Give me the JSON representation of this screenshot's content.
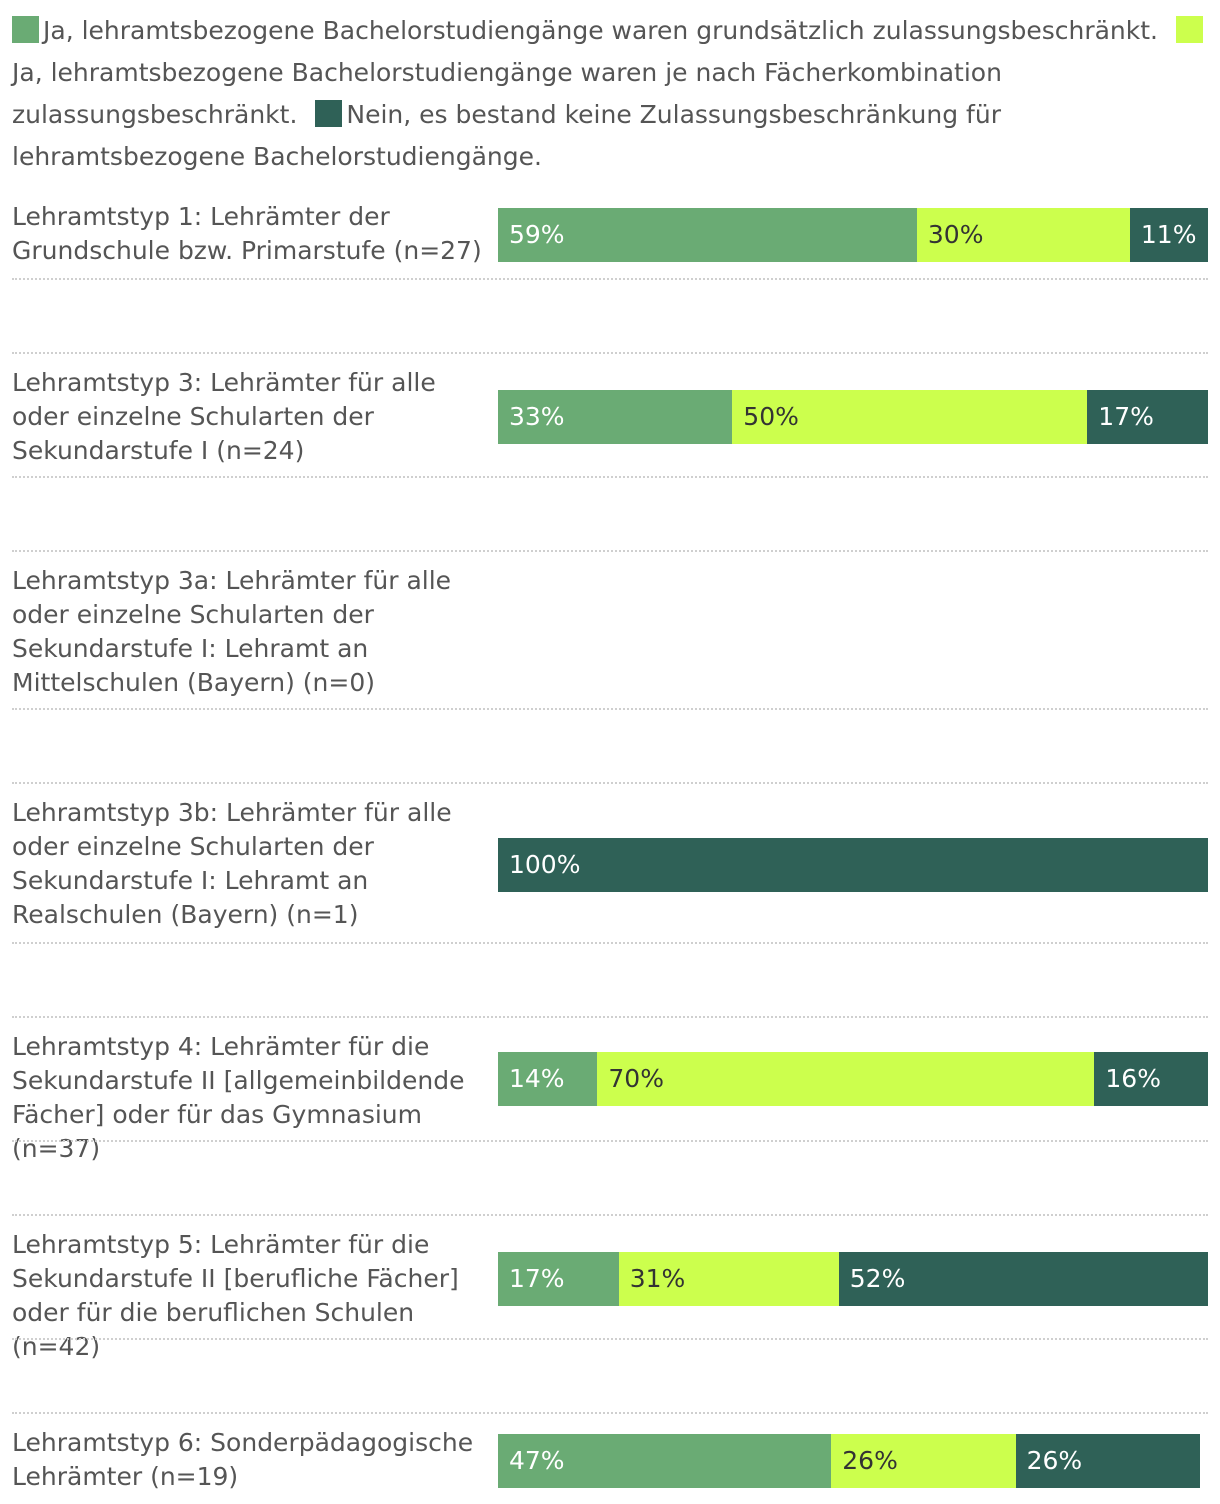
{
  "chart_data": {
    "type": "bar",
    "orientation": "horizontal",
    "stacked": true,
    "value_unit": "%",
    "xlim": [
      0,
      100
    ],
    "legend_position": "top",
    "series": [
      {
        "name": "Ja, lehramtsbezogene Bachelorstudiengänge waren grundsätzlich zulassungsbeschränkt.",
        "color": "#6aab74",
        "text_color": "#ffffff",
        "values": [
          59,
          33,
          0,
          0,
          14,
          17,
          47
        ]
      },
      {
        "name": "Ja, lehramtsbezogene Bachelorstudiengänge waren je nach Fächerkombination zulassungsbeschränkt.",
        "color": "#ccff4d",
        "text_color": "#333333",
        "values": [
          30,
          50,
          0,
          0,
          70,
          31,
          26
        ]
      },
      {
        "name": "Nein, es bestand keine Zulassungsbeschränkung für lehramtsbezogene Bachelorstudiengänge.",
        "color": "#2f6157",
        "text_color": "#ffffff",
        "values": [
          11,
          17,
          0,
          100,
          16,
          52,
          26
        ]
      }
    ],
    "categories": [
      "Lehramtstyp 1: Lehrämter der Grundschule bzw. Primarstufe (n=27)",
      "Lehramtstyp 3: Lehrämter für alle oder einzelne Schularten der Sekundarstufe I (n=24)",
      "Lehramtstyp 3a: Lehrämter für alle oder einzelne Schularten der Sekundarstufe I: Lehramt an Mittelschulen (Bayern) (n=0)",
      "Lehramtstyp 3b: Lehrämter für alle oder einzelne Schularten der Sekundarstufe I: Lehramt an Realschulen (Bayern) (n=1)",
      "Lehramtstyp 4: Lehrämter für die Sekundarstufe II [allgemeinbildende Fächer] oder für das Gymnasium (n=37)",
      "Lehramtstyp 5: Lehrämter für die Sekundarstufe II [berufliche Fächer] oder für die beruflichen Schulen (n=42)",
      "Lehramtstyp 6: Sonderpädagogische Lehrämter (n=19)"
    ],
    "data_labels": [
      [
        "59%",
        "30%",
        "11%"
      ],
      [
        "33%",
        "50%",
        "17%"
      ],
      [],
      [
        "100%"
      ],
      [
        "14%",
        "70%",
        "16%"
      ],
      [
        "17%",
        "31%",
        "52%"
      ],
      [
        "47%",
        "26%",
        "26%"
      ]
    ]
  }
}
